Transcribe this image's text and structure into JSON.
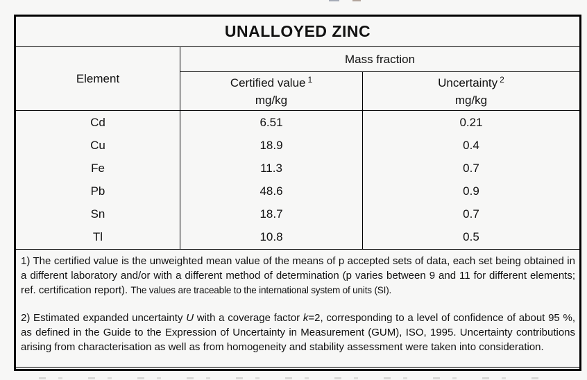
{
  "table": {
    "title": "UNALLOYED ZINC",
    "header": {
      "element": "Element",
      "mass_fraction": "Mass fraction",
      "certified_label": "Certified value",
      "certified_sup": "1",
      "certified_unit": "mg/kg",
      "uncertainty_label": "Uncertainty",
      "uncertainty_sup": "2",
      "uncertainty_unit": "mg/kg"
    },
    "rows": [
      {
        "element": "Cd",
        "certified": "6.51",
        "uncertainty": "0.21"
      },
      {
        "element": "Cu",
        "certified": "18.9",
        "uncertainty": "0.4"
      },
      {
        "element": "Fe",
        "certified": "11.3",
        "uncertainty": "0.7"
      },
      {
        "element": "Pb",
        "certified": "48.6",
        "uncertainty": "0.9"
      },
      {
        "element": "Sn",
        "certified": "18.7",
        "uncertainty": "0.7"
      },
      {
        "element": "Tl",
        "certified": "10.8",
        "uncertainty": "0.5"
      }
    ]
  },
  "footnotes": {
    "note1_main": "1) The certified value is the unweighted mean value of the means of p accepted sets of data, each set being obtained in a different laboratory and/or with a different method of determination (p varies between 9 and 11 for different elements; ref. certification report). ",
    "note1_traceable": "The values are traceable to the international system of units (SI).",
    "note2_a": "2) Estimated expanded uncertainty ",
    "note2_U": "U",
    "note2_b": " with a coverage factor ",
    "note2_k": "k",
    "note2_c": "=2, corresponding to a level of confidence of about 95 %, as defined in the Guide to the Expression of Uncertainty in Measurement (GUM), ISO, 1995. Uncertainty contributions arising from characterisation as well as from homogeneity and stability assessment were taken into consideration."
  }
}
